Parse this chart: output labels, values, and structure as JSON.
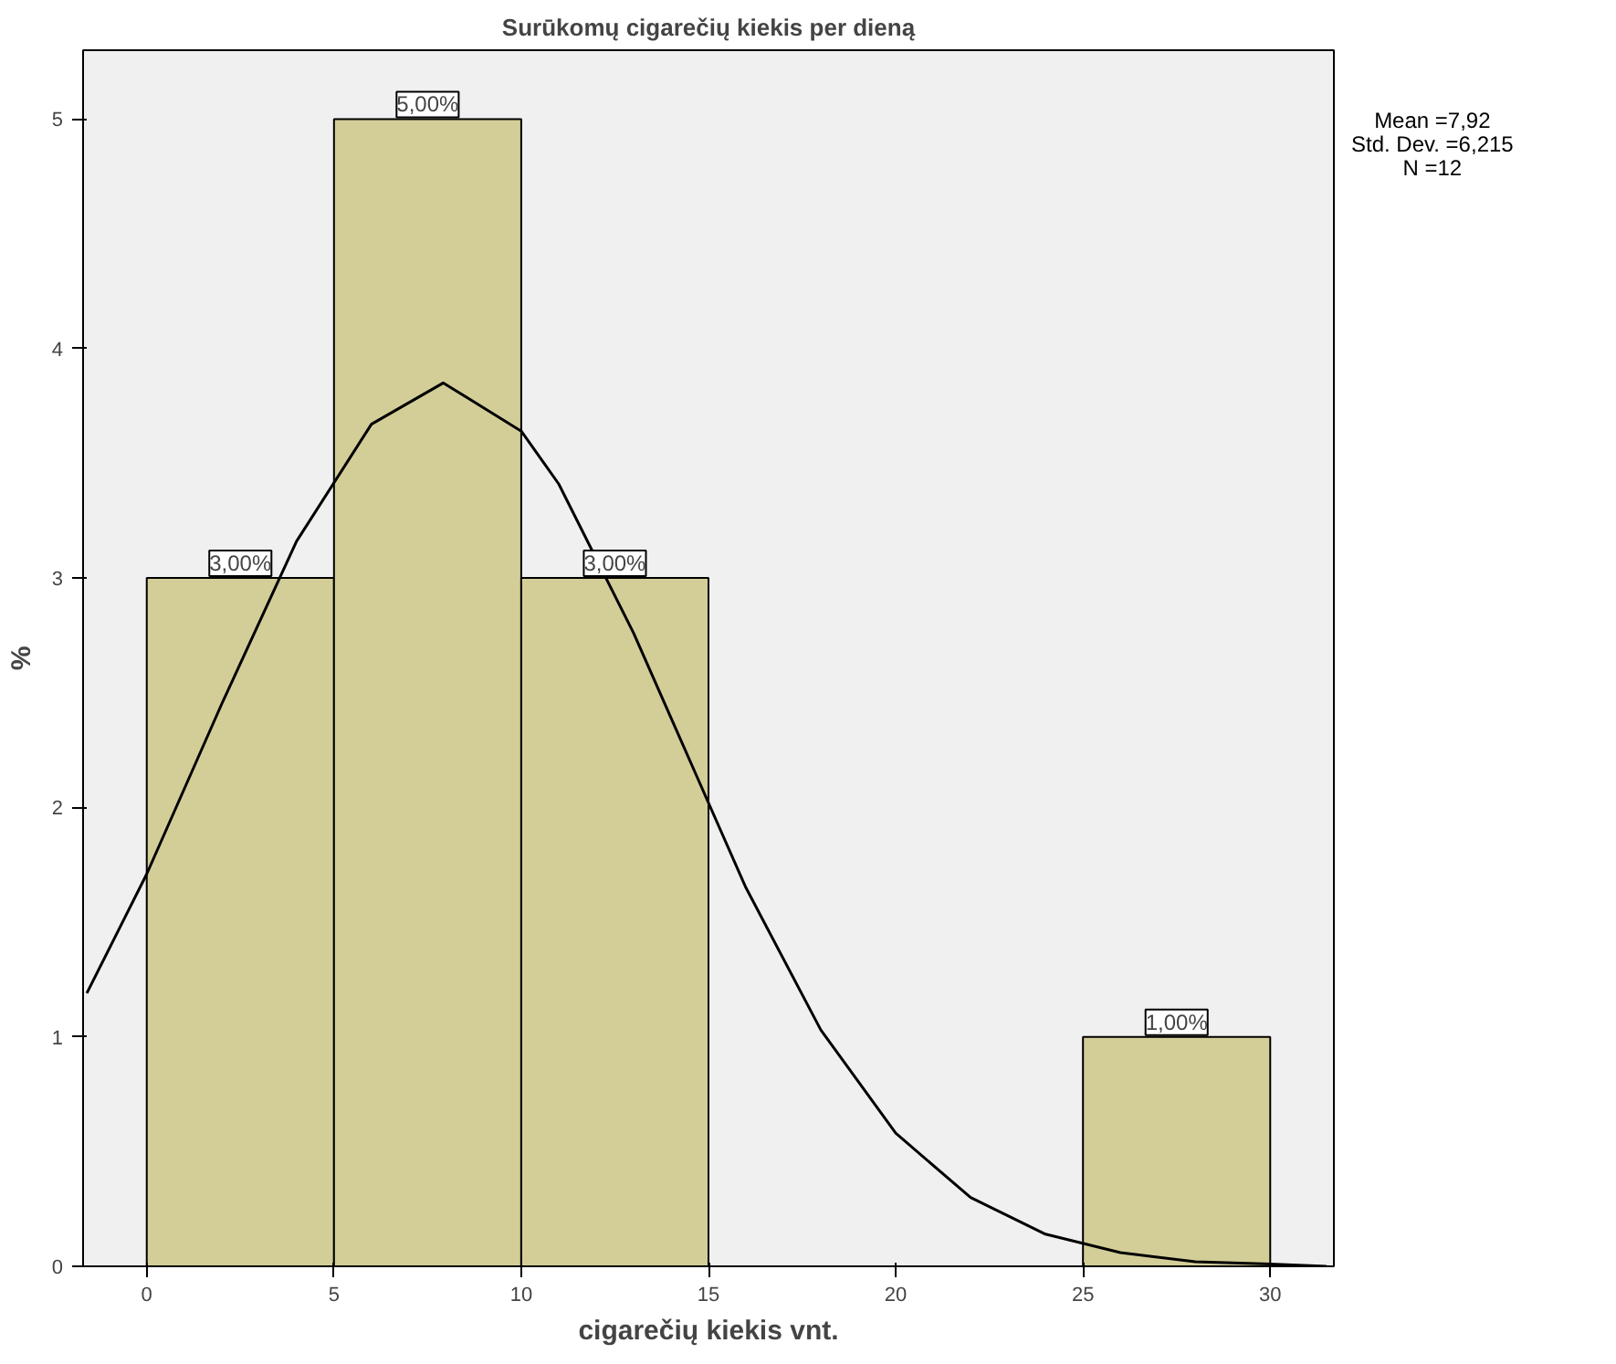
{
  "chart_data": {
    "type": "histogram",
    "title": "Surūkomų cigarečių kiekis per dieną",
    "xlabel": "cigarečių kiekis vnt.",
    "ylabel": "%",
    "bins": [
      0,
      5,
      10,
      15,
      20,
      25,
      30
    ],
    "series": [
      {
        "color": "#d3ce97",
        "values": [
          3,
          5,
          3,
          0,
          0,
          1
        ],
        "value_labels": [
          "3,00%",
          "5,00%",
          "3,00%",
          null,
          null,
          "1,00%"
        ]
      },
      {
        "type": "line",
        "color": "#000000",
        "x": [
          -1.6,
          0,
          2,
          4,
          6,
          7.92,
          10,
          11,
          13,
          14,
          16,
          18,
          20,
          22,
          24,
          26,
          28,
          30,
          31.5
        ],
        "values": [
          1.19,
          1.71,
          2.45,
          3.16,
          3.67,
          3.85,
          3.64,
          3.41,
          2.76,
          2.39,
          1.65,
          1.03,
          0.58,
          0.3,
          0.14,
          0.06,
          0.02,
          0.01,
          0.0
        ]
      }
    ],
    "xlim": [
      -1.7,
      31.7
    ],
    "ylim": [
      0,
      5.3
    ],
    "xticks": [
      0,
      5,
      10,
      15,
      20,
      25,
      30
    ],
    "yticks": [
      0,
      1,
      2,
      3,
      4,
      5
    ],
    "annotations": [
      "Mean =7,92",
      "Std. Dev. =6,215",
      "N =12"
    ]
  }
}
